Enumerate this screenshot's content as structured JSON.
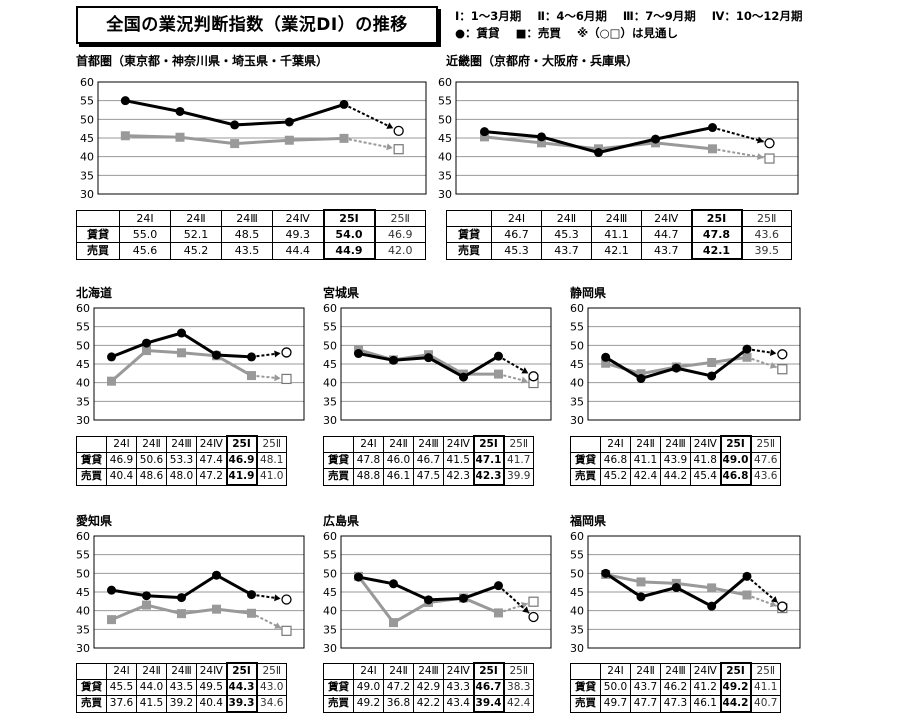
{
  "title": "全国の業況判断指数（業況DI）の推移",
  "legend": {
    "line1": [
      "Ⅰ：1〜3月期",
      "Ⅱ：4〜6月期",
      "Ⅲ：7〜9月期",
      "Ⅳ：10〜12月期"
    ],
    "rent_mark": "●：賃貸",
    "sale_mark": "■：売買",
    "note": "※（○□）は見通し"
  },
  "colors": {
    "rent": "#000000",
    "sale": "#999999",
    "grid": "#999999"
  },
  "row_labels": {
    "rent": "賃貸",
    "sale": "売買"
  },
  "chart_data": [
    {
      "type": "line",
      "title": "首都圏（東京都・神奈川県・埼玉県・千葉県）",
      "categories": [
        "24Ⅰ",
        "24Ⅱ",
        "24Ⅲ",
        "24Ⅳ",
        "25Ⅰ",
        "25Ⅱ"
      ],
      "ylim": [
        30,
        60
      ],
      "yticks": [
        30,
        35,
        40,
        45,
        50,
        55,
        60
      ],
      "grid": true,
      "series": [
        {
          "name": "賃貸",
          "values": [
            "55.0",
            "52.1",
            "48.5",
            "49.3",
            "54.0",
            "46.9"
          ]
        },
        {
          "name": "売買",
          "values": [
            "45.6",
            "45.2",
            "43.5",
            "44.4",
            "44.9",
            "42.0"
          ]
        }
      ],
      "forecast_category": "25Ⅱ",
      "current_category": "25Ⅰ"
    },
    {
      "type": "line",
      "title": "近畿圏（京都府・大阪府・兵庫県）",
      "categories": [
        "24Ⅰ",
        "24Ⅱ",
        "24Ⅲ",
        "24Ⅳ",
        "25Ⅰ",
        "25Ⅱ"
      ],
      "ylim": [
        30,
        60
      ],
      "yticks": [
        30,
        35,
        40,
        45,
        50,
        55,
        60
      ],
      "grid": true,
      "series": [
        {
          "name": "賃貸",
          "values": [
            "46.7",
            "45.3",
            "41.1",
            "44.7",
            "47.8",
            "43.6"
          ]
        },
        {
          "name": "売買",
          "values": [
            "45.3",
            "43.7",
            "42.1",
            "43.7",
            "42.1",
            "39.5"
          ]
        }
      ],
      "forecast_category": "25Ⅱ",
      "current_category": "25Ⅰ"
    },
    {
      "type": "line",
      "title": "北海道",
      "categories": [
        "24Ⅰ",
        "24Ⅱ",
        "24Ⅲ",
        "24Ⅳ",
        "25Ⅰ",
        "25Ⅱ"
      ],
      "ylim": [
        30,
        60
      ],
      "yticks": [
        30,
        35,
        40,
        45,
        50,
        55,
        60
      ],
      "grid": true,
      "series": [
        {
          "name": "賃貸",
          "values": [
            "46.9",
            "50.6",
            "53.3",
            "47.4",
            "46.9",
            "48.1"
          ]
        },
        {
          "name": "売買",
          "values": [
            "40.4",
            "48.6",
            "48.0",
            "47.2",
            "41.9",
            "41.0"
          ]
        }
      ],
      "forecast_category": "25Ⅱ",
      "current_category": "25Ⅰ"
    },
    {
      "type": "line",
      "title": "宮城県",
      "categories": [
        "24Ⅰ",
        "24Ⅱ",
        "24Ⅲ",
        "24Ⅳ",
        "25Ⅰ",
        "25Ⅱ"
      ],
      "ylim": [
        30,
        60
      ],
      "yticks": [
        30,
        35,
        40,
        45,
        50,
        55,
        60
      ],
      "grid": true,
      "series": [
        {
          "name": "賃貸",
          "values": [
            "47.8",
            "46.0",
            "46.7",
            "41.5",
            "47.1",
            "41.7"
          ]
        },
        {
          "name": "売買",
          "values": [
            "48.8",
            "46.1",
            "47.5",
            "42.3",
            "42.3",
            "39.9"
          ]
        }
      ],
      "forecast_category": "25Ⅱ",
      "current_category": "25Ⅰ"
    },
    {
      "type": "line",
      "title": "静岡県",
      "categories": [
        "24Ⅰ",
        "24Ⅱ",
        "24Ⅲ",
        "24Ⅳ",
        "25Ⅰ",
        "25Ⅱ"
      ],
      "ylim": [
        30,
        60
      ],
      "yticks": [
        30,
        35,
        40,
        45,
        50,
        55,
        60
      ],
      "grid": true,
      "series": [
        {
          "name": "賃貸",
          "values": [
            "46.8",
            "41.1",
            "43.9",
            "41.8",
            "49.0",
            "47.6"
          ]
        },
        {
          "name": "売買",
          "values": [
            "45.2",
            "42.4",
            "44.2",
            "45.4",
            "46.8",
            "43.6"
          ]
        }
      ],
      "forecast_category": "25Ⅱ",
      "current_category": "25Ⅰ"
    },
    {
      "type": "line",
      "title": "愛知県",
      "categories": [
        "24Ⅰ",
        "24Ⅱ",
        "24Ⅲ",
        "24Ⅳ",
        "25Ⅰ",
        "25Ⅱ"
      ],
      "ylim": [
        30,
        60
      ],
      "yticks": [
        30,
        35,
        40,
        45,
        50,
        55,
        60
      ],
      "grid": true,
      "series": [
        {
          "name": "賃貸",
          "values": [
            "45.5",
            "44.0",
            "43.5",
            "49.5",
            "44.3",
            "43.0"
          ]
        },
        {
          "name": "売買",
          "values": [
            "37.6",
            "41.5",
            "39.2",
            "40.4",
            "39.3",
            "34.6"
          ]
        }
      ],
      "forecast_category": "25Ⅱ",
      "current_category": "25Ⅰ"
    },
    {
      "type": "line",
      "title": "広島県",
      "categories": [
        "24Ⅰ",
        "24Ⅱ",
        "24Ⅲ",
        "24Ⅳ",
        "25Ⅰ",
        "25Ⅱ"
      ],
      "ylim": [
        30,
        60
      ],
      "yticks": [
        30,
        35,
        40,
        45,
        50,
        55,
        60
      ],
      "grid": true,
      "series": [
        {
          "name": "賃貸",
          "values": [
            "49.0",
            "47.2",
            "42.9",
            "43.3",
            "46.7",
            "38.3"
          ]
        },
        {
          "name": "売買",
          "values": [
            "49.2",
            "36.8",
            "42.2",
            "43.4",
            "39.4",
            "42.4"
          ]
        }
      ],
      "forecast_category": "25Ⅱ",
      "current_category": "25Ⅰ"
    },
    {
      "type": "line",
      "title": "福岡県",
      "categories": [
        "24Ⅰ",
        "24Ⅱ",
        "24Ⅲ",
        "24Ⅳ",
        "25Ⅰ",
        "25Ⅱ"
      ],
      "ylim": [
        30,
        60
      ],
      "yticks": [
        30,
        35,
        40,
        45,
        50,
        55,
        60
      ],
      "grid": true,
      "series": [
        {
          "name": "賃貸",
          "values": [
            "50.0",
            "43.7",
            "46.2",
            "41.2",
            "49.2",
            "41.1"
          ]
        },
        {
          "name": "売買",
          "values": [
            "49.7",
            "47.7",
            "47.3",
            "46.1",
            "44.2",
            "40.7"
          ]
        }
      ],
      "forecast_category": "25Ⅱ",
      "current_category": "25Ⅰ"
    }
  ]
}
